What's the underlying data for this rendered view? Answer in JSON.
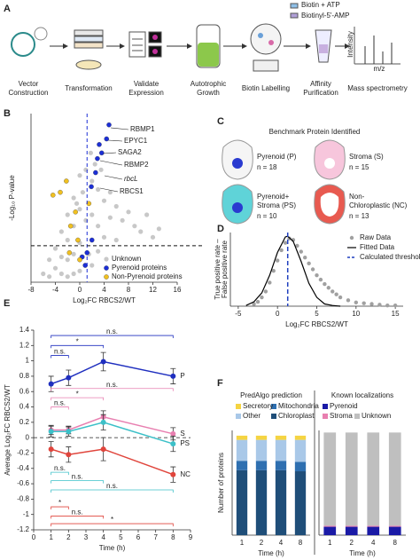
{
  "panel_a": {
    "label": "A",
    "steps": [
      {
        "lines": [
          "Vector",
          "Construction"
        ]
      },
      {
        "lines": [
          "Transformation"
        ]
      },
      {
        "lines": [
          "Validate",
          "Expression"
        ]
      },
      {
        "lines": [
          "Autotrophic",
          "Growth"
        ]
      },
      {
        "lines": [
          "Biotin Labelling"
        ]
      },
      {
        "lines": [
          "Affinity",
          "Purification"
        ]
      },
      {
        "lines": [
          "Mass spectrometry"
        ]
      }
    ],
    "reagents": [
      "Biotin + ATP",
      "Biotinyl-5'-AMP"
    ],
    "spectrum_axes": [
      "Intensity",
      "m/z"
    ]
  },
  "panel_c": {
    "label": "C",
    "title": "Benchmark Protein Identified",
    "groups": [
      {
        "lines": [
          "Pyrenoid (P)"
        ],
        "n": "n = 18"
      },
      {
        "lines": [
          "Stroma (S)"
        ],
        "n": "n = 15"
      },
      {
        "lines": [
          "Pyrenoid+",
          "Stroma (PS)"
        ],
        "n": "n = 10"
      },
      {
        "lines": [
          "Non-",
          "Chloroplastic (NC)"
        ],
        "n": "n = 13"
      }
    ]
  },
  "chart_data": [
    {
      "type": "scatter",
      "panel_label": "B",
      "xlabel": "Log₂FC RBCS2/WT",
      "ylabel": "-Log₁₀ P-value",
      "xlim": [
        -8,
        16
      ],
      "xticks": [
        -8,
        -4,
        0,
        4,
        8,
        12,
        16
      ],
      "ylim": [
        0,
        6
      ],
      "threshold_x": 1.2,
      "threshold_y": 1.3,
      "legend": "lower right",
      "series": [
        {
          "name": "Unknown",
          "color": "#c8c8c8",
          "x": [
            -6,
            -5,
            -5,
            -4,
            -4,
            -3,
            -3,
            -3,
            -2,
            -2,
            -2,
            -2,
            -1,
            -1,
            -1,
            -1,
            0,
            0,
            0,
            0,
            0.5,
            1,
            1,
            1.5,
            2,
            2,
            2,
            3,
            3,
            3,
            4,
            4,
            5,
            5,
            6,
            6,
            7,
            8,
            9,
            10,
            11,
            12,
            13,
            2.5,
            3.5,
            1.8,
            -0.5,
            0.3
          ],
          "values": [
            0.3,
            0.8,
            0.2,
            1.2,
            0.5,
            1.8,
            0.9,
            0.3,
            2.4,
            1.5,
            0.8,
            0.2,
            3.0,
            2.0,
            1.0,
            0.3,
            3.8,
            2.6,
            1.4,
            0.4,
            3.2,
            4.0,
            2.2,
            1.0,
            3.6,
            2.4,
            0.6,
            3.3,
            2.0,
            1.1,
            2.9,
            1.6,
            3.2,
            2.3,
            2.7,
            1.5,
            2.2,
            2.5,
            2.0,
            1.8,
            2.4,
            1.6,
            1.9,
            4.2,
            4.0,
            4.6,
            2.8,
            0.9
          ]
        },
        {
          "name": "Pyrenoid proteins",
          "color": "#1c2fd6",
          "x": [
            4.8,
            4.4,
            3.6,
            2.9,
            3.2,
            2.6,
            1.9,
            2.0,
            1.2,
            0.4,
            0.9
          ],
          "values": [
            5.6,
            5.1,
            4.6,
            4.4,
            4.9,
            3.9,
            3.4,
            1.5,
            1.05,
            0.9,
            0.6
          ]
        },
        {
          "name": "Non-Pyrenoid proteins",
          "color": "#f0c020",
          "x": [
            -2.2,
            -3.2,
            -4.4,
            -0.7,
            -1.5,
            -0.3,
            -1.7,
            0,
            1.5
          ],
          "values": [
            3.6,
            3.2,
            3.1,
            2.5,
            2.0,
            1.5,
            1.05,
            0.8,
            2.8
          ]
        }
      ],
      "annotations": [
        "RBMP1",
        "EPYC1",
        "SAGA2",
        "RBMP2",
        "rbcL",
        "RBCS1"
      ]
    },
    {
      "type": "line",
      "panel_label": "D",
      "xlabel": "Log₂FC RBCS2/WT",
      "ylabel": [
        "True positive rate –",
        "False positive rate"
      ],
      "xlim": [
        -6,
        16
      ],
      "xticks": [
        -5,
        0,
        5,
        10,
        15
      ],
      "ylim": [
        0,
        1
      ],
      "threshold_x": 1.3,
      "threshold_name": "Calculated threshold",
      "threshold_color": "#1f3fbf",
      "legend": "upper right",
      "series": [
        {
          "name": "Raw Data",
          "style": "points",
          "color": "#a0a0a0",
          "x": [
            -3,
            -2.5,
            -2,
            -1.5,
            -1,
            -0.5,
            0,
            0.5,
            1,
            1.5,
            2,
            2.5,
            3,
            3.5,
            4,
            4.5,
            5,
            5.5,
            6,
            6.5,
            7,
            7.5,
            8,
            9,
            10,
            11,
            12,
            13,
            14,
            15
          ],
          "values": [
            0.03,
            0.06,
            0.12,
            0.2,
            0.32,
            0.48,
            0.62,
            0.76,
            0.86,
            0.92,
            0.9,
            0.82,
            0.74,
            0.66,
            0.58,
            0.5,
            0.42,
            0.36,
            0.3,
            0.25,
            0.2,
            0.16,
            0.12,
            0.08,
            0.05,
            0.04,
            0.03,
            0.02,
            0.01,
            0.01
          ]
        },
        {
          "name": "Fitted Data",
          "style": "line",
          "color": "#000000",
          "x": [
            -4,
            -3,
            -2,
            -1,
            0,
            1,
            1.3,
            2,
            3,
            4,
            5,
            6,
            7,
            8
          ],
          "values": [
            0.01,
            0.06,
            0.18,
            0.42,
            0.73,
            0.94,
            0.95,
            0.88,
            0.61,
            0.31,
            0.12,
            0.03,
            0.01,
            0
          ]
        }
      ]
    },
    {
      "type": "errorline",
      "panel_label": "E",
      "xlabel": "Time (h)",
      "ylabel": "Average Log₂FC RBCS2/WT",
      "xlim": [
        0,
        9
      ],
      "xticks": [
        0,
        1,
        2,
        3,
        4,
        5,
        6,
        7,
        8,
        9
      ],
      "ylim": [
        -1.2,
        1.4
      ],
      "yticks": [
        -1.2,
        -1,
        -0.8,
        -0.6,
        -0.4,
        -0.2,
        0,
        0.2,
        0.4,
        0.6,
        0.8,
        1,
        1.2,
        1.4
      ],
      "series": [
        {
          "name": "P",
          "color": "#1f2fbf",
          "x": [
            1,
            2,
            4,
            8
          ],
          "values": [
            0.7,
            0.78,
            0.99,
            0.8
          ],
          "errors": [
            0.1,
            0.1,
            0.12,
            0.1
          ]
        },
        {
          "name": "S",
          "color": "#e87fb0",
          "x": [
            1,
            2,
            4,
            8
          ],
          "values": [
            0.1,
            0.1,
            0.27,
            0.05
          ],
          "errors": [
            0.06,
            0.05,
            0.08,
            0.08
          ]
        },
        {
          "name": "PS",
          "color": "#3cc0c8",
          "x": [
            1,
            2,
            4,
            8
          ],
          "values": [
            0.08,
            0.08,
            0.2,
            -0.08
          ],
          "errors": [
            0.07,
            0.06,
            0.1,
            0.1
          ]
        },
        {
          "name": "NC",
          "color": "#e0453c",
          "x": [
            1,
            2,
            4,
            8
          ],
          "values": [
            -0.15,
            -0.22,
            -0.15,
            -0.48
          ],
          "errors": [
            0.1,
            0.1,
            0.15,
            0.1
          ]
        }
      ],
      "brackets": [
        {
          "from": 1,
          "to": 8,
          "y": 1.33,
          "label": "n.s.",
          "color": "#1f2fbf"
        },
        {
          "from": 1,
          "to": 4,
          "y": 1.2,
          "label": "*",
          "color": "#1f2fbf"
        },
        {
          "from": 1,
          "to": 2,
          "y": 1.07,
          "label": "n.s.",
          "color": "#1f2fbf"
        },
        {
          "from": 1,
          "to": 8,
          "y": 0.64,
          "label": "n.s.",
          "color": "#e87fb0"
        },
        {
          "from": 1,
          "to": 4,
          "y": 0.52,
          "label": "*",
          "color": "#e87fb0"
        },
        {
          "from": 1,
          "to": 2,
          "y": 0.4,
          "label": "n.s.",
          "color": "#e87fb0"
        },
        {
          "from": 1,
          "to": 2,
          "y": -0.45,
          "label": "n.s.",
          "color": "#3cc0c8"
        },
        {
          "from": 1,
          "to": 4,
          "y": -0.56,
          "label": "n.s.",
          "color": "#3cc0c8"
        },
        {
          "from": 1,
          "to": 8,
          "y": -0.68,
          "label": "n.s.",
          "color": "#3cc0c8"
        },
        {
          "from": 1,
          "to": 2,
          "y": -0.9,
          "label": "*",
          "color": "#e0453c"
        },
        {
          "from": 1,
          "to": 4,
          "y": -1.02,
          "label": "n.s.",
          "color": "#e0453c"
        },
        {
          "from": 1,
          "to": 8,
          "y": -1.12,
          "label": "*",
          "color": "#e0453c"
        }
      ]
    },
    {
      "type": "stacked_bar",
      "panel_label": "F",
      "title": "PredAlgo prediction",
      "xlabel": "Time (h)",
      "ylabel": "Number of proteins",
      "categories": [
        "1",
        "2",
        "4",
        "8"
      ],
      "ylim": [
        0,
        100
      ],
      "series": [
        {
          "name": "Chloroplast",
          "color": "#1f4e79",
          "values": [
            62,
            62,
            62,
            61
          ]
        },
        {
          "name": "Mitochondria",
          "color": "#2e6fb0",
          "values": [
            9,
            9,
            9,
            9
          ]
        },
        {
          "name": "Other",
          "color": "#a9c8e8",
          "values": [
            20,
            20,
            20,
            21
          ]
        },
        {
          "name": "Secretory",
          "color": "#f5d442",
          "values": [
            4,
            4,
            4,
            4
          ]
        }
      ]
    },
    {
      "type": "stacked_bar",
      "title": "Known localizations",
      "xlabel": "Time (h)",
      "categories": [
        "1",
        "2",
        "4",
        "8"
      ],
      "ylim": [
        0,
        100
      ],
      "series": [
        {
          "name": "Pyrenoid",
          "color": "#1a1aa6",
          "values": [
            8,
            8,
            8,
            8
          ]
        },
        {
          "name": "Stroma",
          "color": "#e87fb0",
          "values": [
            1,
            1,
            1,
            1
          ]
        },
        {
          "name": "Unknown",
          "color": "#bfbfbf",
          "values": [
            89,
            89,
            89,
            89
          ]
        }
      ]
    }
  ]
}
